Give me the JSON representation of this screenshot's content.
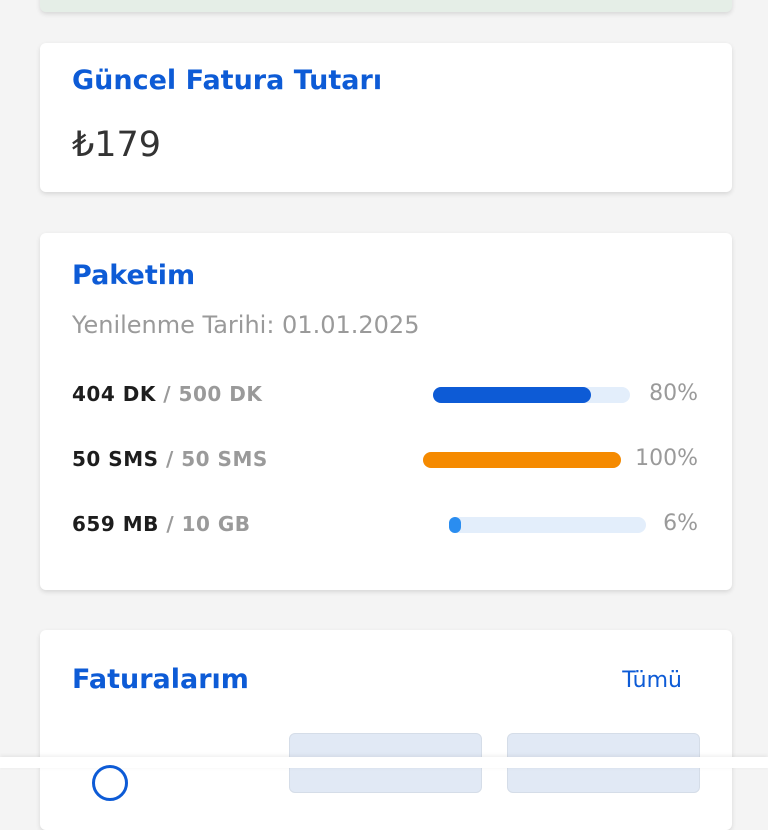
{
  "invoice": {
    "title": "Güncel Fatura Tutarı",
    "amount": "₺179"
  },
  "package": {
    "title": "Paketim",
    "renewal": "Yenilenme Tarihi: 01.01.2025",
    "items": [
      {
        "used": "404 DK",
        "total": "/ 500 DK",
        "percent_label": "80%",
        "percent": 80,
        "color": "#0d5bd6"
      },
      {
        "used": "50 SMS",
        "total": "/ 50 SMS",
        "percent_label": "100%",
        "percent": 100,
        "color": "#f58a00"
      },
      {
        "used": "659 MB",
        "total": "/ 10 GB",
        "percent_label": "6%",
        "percent": 6,
        "color": "#2a8df0"
      }
    ]
  },
  "invoices": {
    "title": "Faturalarım",
    "see_all": "Tümü"
  }
}
